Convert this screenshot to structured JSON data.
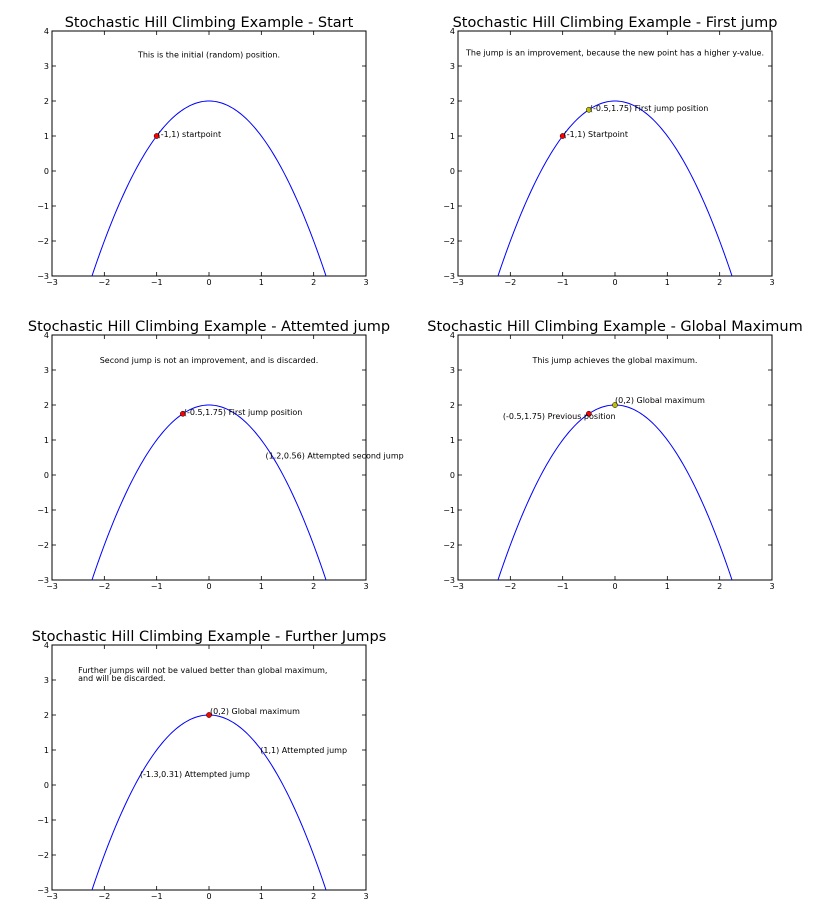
{
  "chart_data": [
    {
      "type": "line",
      "title": "Stochastic Hill Climbing Example - Start",
      "xlim": [
        -3,
        3
      ],
      "ylim": [
        -3,
        4
      ],
      "xticks": [
        -3,
        -2,
        -1,
        0,
        1,
        2,
        3
      ],
      "yticks": [
        -3,
        -2,
        -1,
        0,
        1,
        2,
        3,
        4
      ],
      "curve": {
        "equation": "y = 2 - x^2",
        "x_range": [
          -2.236,
          2.236
        ],
        "color": "#0000ff"
      },
      "note": "This is the initial (random) position.",
      "note_lines": [
        "This is the initial (random) position."
      ],
      "points": [
        {
          "x": -1,
          "y": 1,
          "color": "#ff0000",
          "label": "(-1,1) startpoint"
        }
      ]
    },
    {
      "type": "line",
      "title": "Stochastic Hill Climbing Example - First jump",
      "xlim": [
        -3,
        3
      ],
      "ylim": [
        -3,
        4
      ],
      "xticks": [
        -3,
        -2,
        -1,
        0,
        1,
        2,
        3
      ],
      "yticks": [
        -3,
        -2,
        -1,
        0,
        1,
        2,
        3,
        4
      ],
      "curve": {
        "equation": "y = 2 - x^2",
        "x_range": [
          -2.236,
          2.236
        ],
        "color": "#0000ff"
      },
      "note": "The jump is an improvement, because the new point has a higher y-value.",
      "note_lines": [
        "The jump is an improvement, because the new point has a higher y-value."
      ],
      "points": [
        {
          "x": -1,
          "y": 1,
          "color": "#ff0000",
          "label": "(-1,1) Startpoint"
        },
        {
          "x": -0.5,
          "y": 1.75,
          "color": "#bfbf00",
          "label": "(-0.5,1.75) First jump position"
        }
      ]
    },
    {
      "type": "line",
      "title": "Stochastic Hill Climbing Example - Attemted jump",
      "xlim": [
        -3,
        3
      ],
      "ylim": [
        -3,
        4
      ],
      "xticks": [
        -3,
        -2,
        -1,
        0,
        1,
        2,
        3
      ],
      "yticks": [
        -3,
        -2,
        -1,
        0,
        1,
        2,
        3,
        4
      ],
      "curve": {
        "equation": "y = 2 - x^2",
        "x_range": [
          -2.236,
          2.236
        ],
        "color": "#0000ff"
      },
      "note": "Second jump is not an improvement, and is discarded.",
      "note_lines": [
        "Second jump is not an improvement, and is discarded."
      ],
      "points": [
        {
          "x": -0.5,
          "y": 1.75,
          "color": "#ff0000",
          "label": "(-0.5,1.75) First jump position"
        },
        {
          "x": 1.2,
          "y": 0.56,
          "color": null,
          "label": "(1.2,0.56) Attempted second jump"
        }
      ]
    },
    {
      "type": "line",
      "title": "Stochastic Hill Climbing Example - Global Maximum",
      "xlim": [
        -3,
        3
      ],
      "ylim": [
        -3,
        4
      ],
      "xticks": [
        -3,
        -2,
        -1,
        0,
        1,
        2,
        3
      ],
      "yticks": [
        -3,
        -2,
        -1,
        0,
        1,
        2,
        3,
        4
      ],
      "curve": {
        "equation": "y = 2 - x^2",
        "x_range": [
          -2.236,
          2.236
        ],
        "color": "#0000ff"
      },
      "note": "This jump achieves the global maximum.",
      "note_lines": [
        "This jump achieves the global maximum."
      ],
      "points": [
        {
          "x": -0.5,
          "y": 1.75,
          "color": "#ff0000",
          "label": "(-0.5,1.75) Previous position"
        },
        {
          "x": 0,
          "y": 2,
          "color": "#bfbf00",
          "label": "(0,2) Global maximum"
        }
      ]
    },
    {
      "type": "line",
      "title": "Stochastic Hill Climbing Example - Further Jumps",
      "xlim": [
        -3,
        3
      ],
      "ylim": [
        -3,
        4
      ],
      "xticks": [
        -3,
        -2,
        -1,
        0,
        1,
        2,
        3
      ],
      "yticks": [
        -3,
        -2,
        -1,
        0,
        1,
        2,
        3,
        4
      ],
      "curve": {
        "equation": "y = 2 - x^2",
        "x_range": [
          -2.236,
          2.236
        ],
        "color": "#0000ff"
      },
      "note": "Further jumps will not be valued better than global maximum, and will be discarded.",
      "note_lines": [
        "Further jumps will not be valued better than global maximum,",
        "and will be discarded."
      ],
      "points": [
        {
          "x": 0,
          "y": 2,
          "color": "#ff0000",
          "label": "(0,2) Global maximum"
        },
        {
          "x": 1,
          "y": 1,
          "color": null,
          "label": "(1,1) Attempted jump"
        },
        {
          "x": -1.3,
          "y": 0.31,
          "color": null,
          "label": "(-1.3,0.31) Attempted jump"
        }
      ]
    }
  ]
}
